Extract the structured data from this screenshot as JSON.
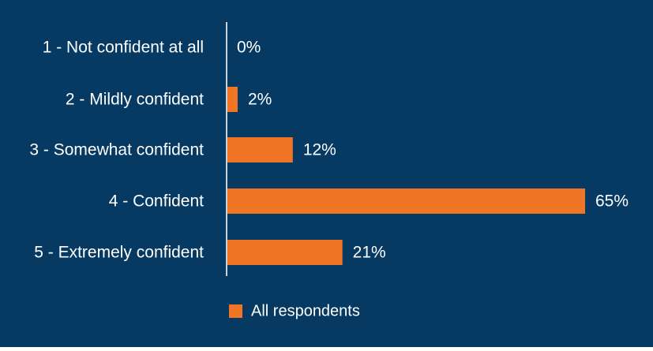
{
  "colors": {
    "background": "#063a63",
    "bar": "#f07524",
    "text": "#ffffff",
    "axis": "#c9d3de"
  },
  "chart_data": {
    "type": "bar",
    "orientation": "horizontal",
    "categories": [
      "1 - Not confident at all",
      "2 - Mildly confident",
      "3 - Somewhat confident",
      "4 - Confident",
      "5 - Extremely confident"
    ],
    "series": [
      {
        "name": "All respondents",
        "values": [
          0,
          2,
          12,
          65,
          21
        ]
      }
    ],
    "value_labels": [
      "0%",
      "2%",
      "12%",
      "65%",
      "21%"
    ],
    "xlim": [
      0,
      65
    ],
    "grid": false,
    "legend_position": "bottom-center"
  }
}
